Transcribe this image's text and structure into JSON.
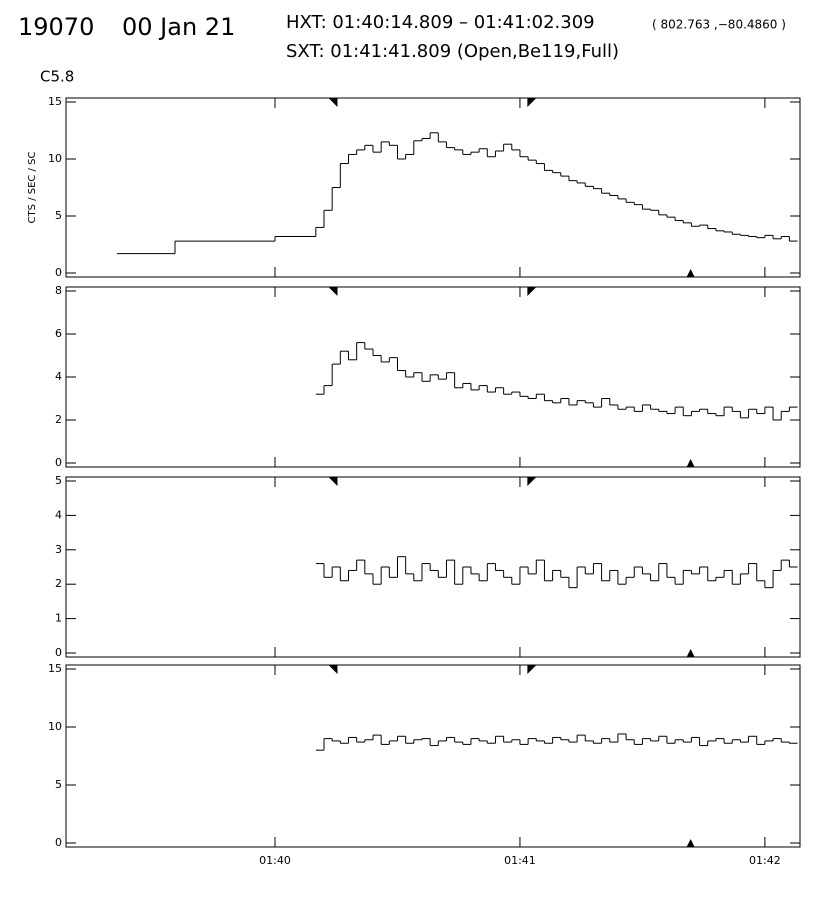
{
  "header": {
    "id": "19070",
    "date": "00 Jan 21",
    "hxt": "HXT: 01:40:14.809 – 01:41:02.309",
    "position": "( 802.763 ,−80.4860 )",
    "sxt": "SXT: 01:41:41.809 (Open,Be119,Full)",
    "class": "C5.8"
  },
  "markers": {
    "top": [
      6014.809,
      6062.309
    ],
    "bottom": [
      6101.809
    ]
  },
  "chart_data": [
    {
      "type": "line",
      "step": true,
      "ylabel": "CTS / SEC / SC",
      "xlim": [
        5948.8,
        6128.6
      ],
      "ylim": [
        0,
        15
      ],
      "yticks": [
        0,
        5,
        10,
        15
      ],
      "x": [
        5961.3,
        5975.5,
        6000,
        6010,
        6012,
        6014,
        6016,
        6018,
        6020,
        6022,
        6024,
        6026,
        6028,
        6030,
        6032,
        6034,
        6036,
        6038,
        6040,
        6042,
        6044,
        6046,
        6048,
        6050,
        6052,
        6054,
        6056,
        6058,
        6060,
        6062,
        6064,
        6066,
        6068,
        6070,
        6072,
        6074,
        6076,
        6078,
        6080,
        6082,
        6084,
        6086,
        6088,
        6090,
        6092,
        6094,
        6096,
        6098,
        6100,
        6102,
        6104,
        6106,
        6108,
        6110,
        6112,
        6114,
        6116,
        6118,
        6120,
        6122,
        6124,
        6126
      ],
      "values": [
        1.7,
        2.8,
        3.2,
        4.0,
        5.5,
        7.5,
        9.6,
        10.4,
        10.8,
        11.2,
        10.6,
        11.5,
        11.2,
        10.0,
        10.4,
        11.6,
        11.8,
        12.3,
        11.5,
        11.0,
        10.8,
        10.4,
        10.6,
        10.9,
        10.2,
        10.7,
        11.3,
        10.8,
        10.2,
        9.9,
        9.6,
        9.0,
        8.8,
        8.5,
        8.1,
        7.9,
        7.6,
        7.4,
        7.0,
        6.8,
        6.5,
        6.2,
        6.0,
        5.6,
        5.5,
        5.1,
        4.9,
        4.6,
        4.4,
        4.1,
        4.2,
        3.9,
        3.7,
        3.6,
        3.4,
        3.3,
        3.2,
        3.1,
        3.3,
        3.0,
        3.2,
        2.8
      ]
    },
    {
      "type": "line",
      "step": true,
      "xlim": [
        5948.8,
        6128.6
      ],
      "ylim": [
        0,
        8
      ],
      "yticks": [
        0,
        2,
        4,
        6,
        8
      ],
      "x": [
        6010,
        6012,
        6014,
        6016,
        6018,
        6020,
        6022,
        6024,
        6026,
        6028,
        6030,
        6032,
        6034,
        6036,
        6038,
        6040,
        6042,
        6044,
        6046,
        6048,
        6050,
        6052,
        6054,
        6056,
        6058,
        6060,
        6062,
        6064,
        6066,
        6068,
        6070,
        6072,
        6074,
        6076,
        6078,
        6080,
        6082,
        6084,
        6086,
        6088,
        6090,
        6092,
        6094,
        6096,
        6098,
        6100,
        6102,
        6104,
        6106,
        6108,
        6110,
        6112,
        6114,
        6116,
        6118,
        6120,
        6122,
        6124,
        6126
      ],
      "values": [
        3.2,
        3.6,
        4.6,
        5.2,
        4.8,
        5.6,
        5.3,
        5.0,
        4.7,
        4.9,
        4.3,
        4.0,
        4.2,
        3.8,
        4.1,
        3.9,
        4.2,
        3.5,
        3.7,
        3.4,
        3.6,
        3.3,
        3.5,
        3.2,
        3.3,
        3.1,
        3.0,
        3.2,
        2.9,
        2.8,
        3.0,
        2.7,
        2.9,
        2.8,
        2.6,
        3.0,
        2.7,
        2.5,
        2.6,
        2.4,
        2.7,
        2.5,
        2.4,
        2.3,
        2.6,
        2.2,
        2.4,
        2.5,
        2.3,
        2.2,
        2.6,
        2.4,
        2.1,
        2.5,
        2.3,
        2.6,
        2.0,
        2.4,
        2.6
      ]
    },
    {
      "type": "line",
      "step": true,
      "xlim": [
        5948.8,
        6128.6
      ],
      "ylim": [
        0,
        5
      ],
      "yticks": [
        0,
        1,
        2,
        3,
        4,
        5
      ],
      "x": [
        6010,
        6012,
        6014,
        6016,
        6018,
        6020,
        6022,
        6024,
        6026,
        6028,
        6030,
        6032,
        6034,
        6036,
        6038,
        6040,
        6042,
        6044,
        6046,
        6048,
        6050,
        6052,
        6054,
        6056,
        6058,
        6060,
        6062,
        6064,
        6066,
        6068,
        6070,
        6072,
        6074,
        6076,
        6078,
        6080,
        6082,
        6084,
        6086,
        6088,
        6090,
        6092,
        6094,
        6096,
        6098,
        6100,
        6102,
        6104,
        6106,
        6108,
        6110,
        6112,
        6114,
        6116,
        6118,
        6120,
        6122,
        6124,
        6126
      ],
      "values": [
        2.6,
        2.2,
        2.5,
        2.1,
        2.4,
        2.7,
        2.3,
        2.0,
        2.5,
        2.2,
        2.8,
        2.3,
        2.1,
        2.6,
        2.4,
        2.2,
        2.7,
        2.0,
        2.5,
        2.3,
        2.1,
        2.6,
        2.4,
        2.2,
        2.0,
        2.5,
        2.3,
        2.7,
        2.1,
        2.4,
        2.2,
        1.9,
        2.5,
        2.3,
        2.6,
        2.1,
        2.4,
        2.0,
        2.2,
        2.5,
        2.3,
        2.1,
        2.6,
        2.2,
        2.0,
        2.4,
        2.3,
        2.5,
        2.1,
        2.2,
        2.4,
        2.0,
        2.3,
        2.6,
        2.1,
        1.9,
        2.4,
        2.7,
        2.5
      ]
    },
    {
      "type": "line",
      "step": true,
      "xlim": [
        5948.8,
        6128.6
      ],
      "ylim": [
        0,
        15
      ],
      "yticks": [
        0,
        5,
        10,
        15
      ],
      "xticks": [
        {
          "value": 6000,
          "label": "01:40"
        },
        {
          "value": 6060,
          "label": "01:41"
        },
        {
          "value": 6120,
          "label": "01:42"
        }
      ],
      "x": [
        6010,
        6012,
        6014,
        6016,
        6018,
        6020,
        6022,
        6024,
        6026,
        6028,
        6030,
        6032,
        6034,
        6036,
        6038,
        6040,
        6042,
        6044,
        6046,
        6048,
        6050,
        6052,
        6054,
        6056,
        6058,
        6060,
        6062,
        6064,
        6066,
        6068,
        6070,
        6072,
        6074,
        6076,
        6078,
        6080,
        6082,
        6084,
        6086,
        6088,
        6090,
        6092,
        6094,
        6096,
        6098,
        6100,
        6102,
        6104,
        6106,
        6108,
        6110,
        6112,
        6114,
        6116,
        6118,
        6120,
        6122,
        6124,
        6126
      ],
      "values": [
        8.0,
        9.0,
        8.8,
        8.6,
        9.1,
        8.7,
        8.9,
        9.3,
        8.5,
        8.8,
        9.2,
        8.6,
        8.9,
        9.0,
        8.4,
        8.8,
        9.1,
        8.7,
        8.5,
        9.0,
        8.8,
        8.6,
        9.2,
        8.7,
        8.9,
        8.5,
        9.0,
        8.8,
        8.6,
        9.1,
        8.9,
        8.7,
        9.3,
        8.8,
        8.6,
        9.0,
        8.7,
        9.4,
        8.9,
        8.5,
        9.0,
        8.8,
        9.2,
        8.6,
        8.9,
        8.7,
        9.1,
        8.4,
        8.8,
        9.0,
        8.6,
        8.9,
        8.7,
        9.2,
        8.5,
        8.8,
        9.0,
        8.7,
        8.6
      ]
    }
  ]
}
